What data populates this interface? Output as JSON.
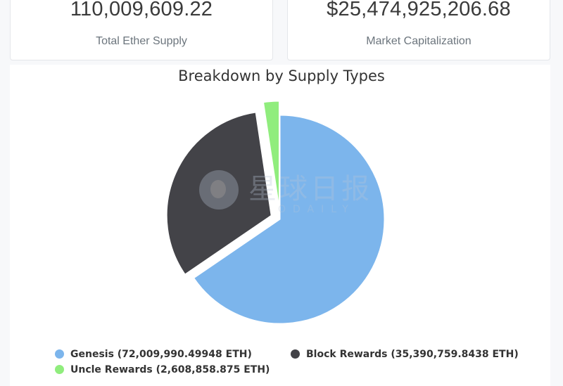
{
  "stats": {
    "total_supply": {
      "value": "110,009,609.22",
      "label": "Total Ether Supply"
    },
    "market_cap": {
      "value": "$25,474,925,206.68",
      "label": "Market Capitalization"
    }
  },
  "chart_data": {
    "type": "pie",
    "title": "Breakdown by Supply Types",
    "series": [
      {
        "name": "Genesis",
        "value": 72009990.49948,
        "legend": "Genesis (72,009,990.49948 ETH)",
        "color": "#7cb5ec"
      },
      {
        "name": "Block Rewards",
        "value": 35390759.8438,
        "legend": "Block Rewards (35,390,759.8438 ETH)",
        "color": "#434348"
      },
      {
        "name": "Uncle Rewards",
        "value": 2608858.875,
        "legend": "Uncle Rewards (2,608,858.875 ETH)",
        "color": "#90ed7d"
      }
    ],
    "legend_position": "bottom"
  },
  "watermark": {
    "cn": "星球日报",
    "en": "ODAILY"
  }
}
